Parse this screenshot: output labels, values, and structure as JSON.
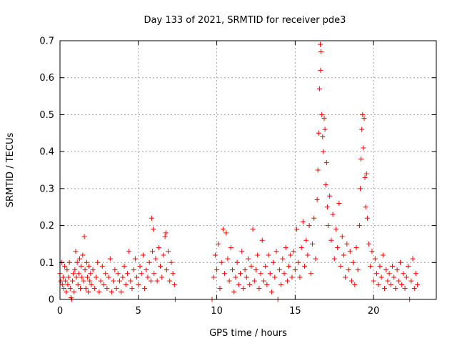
{
  "chart_data": {
    "type": "scatter",
    "title": "Day 133 of 2021, SRMTID for receiver pde3",
    "xlabel": "GPS time / hours",
    "ylabel": "SRMTID / TECUs",
    "xlim": [
      0,
      24
    ],
    "ylim": [
      0,
      0.7
    ],
    "xticks": [
      0,
      5,
      10,
      15,
      20
    ],
    "xtick_labels": [
      "0",
      "5",
      "10",
      "15",
      "20"
    ],
    "yticks": [
      0,
      0.1,
      0.2,
      0.3,
      0.4,
      0.5,
      0.6,
      0.7
    ],
    "ytick_labels": [
      "0",
      "0.1",
      "0.2",
      "0.3",
      "0.4",
      "0.5",
      "0.6",
      "0.7"
    ],
    "grid": true,
    "marker": "+",
    "series": [
      {
        "name": "SRMTID",
        "color": "#ff0000",
        "points": [
          [
            0.0,
            0.07
          ],
          [
            0.05,
            0.05
          ],
          [
            0.1,
            0.1
          ],
          [
            0.15,
            0.04
          ],
          [
            0.2,
            0.06
          ],
          [
            0.25,
            0.03
          ],
          [
            0.3,
            0.09
          ],
          [
            0.35,
            0.05
          ],
          [
            0.4,
            0.02
          ],
          [
            0.45,
            0.08
          ],
          [
            0.5,
            0.04
          ],
          [
            0.55,
            0.06
          ],
          [
            0.6,
            0.1
          ],
          [
            0.65,
            0.03
          ],
          [
            0.7,
            0.005
          ],
          [
            0.75,
            0.0
          ],
          [
            0.8,
            0.05
          ],
          [
            0.85,
            0.07
          ],
          [
            0.9,
            0.02
          ],
          [
            0.95,
            0.08
          ],
          [
            1.0,
            0.13
          ],
          [
            1.05,
            0.06
          ],
          [
            1.1,
            0.1
          ],
          [
            1.15,
            0.04
          ],
          [
            1.2,
            0.07
          ],
          [
            1.25,
            0.11
          ],
          [
            1.3,
            0.03
          ],
          [
            1.35,
            0.09
          ],
          [
            1.4,
            0.06
          ],
          [
            1.45,
            0.12
          ],
          [
            1.5,
            0.05
          ],
          [
            1.55,
            0.17
          ],
          [
            1.6,
            0.08
          ],
          [
            1.65,
            0.03
          ],
          [
            1.7,
            0.1
          ],
          [
            1.75,
            0.06
          ],
          [
            1.8,
            0.02
          ],
          [
            1.85,
            0.09
          ],
          [
            1.9,
            0.05
          ],
          [
            1.95,
            0.07
          ],
          [
            2.0,
            0.04
          ],
          [
            2.1,
            0.08
          ],
          [
            2.2,
            0.03
          ],
          [
            2.3,
            0.06
          ],
          [
            2.4,
            0.1
          ],
          [
            2.5,
            0.02
          ],
          [
            2.6,
            0.05
          ],
          [
            2.7,
            0.09
          ],
          [
            2.8,
            0.04
          ],
          [
            2.9,
            0.07
          ],
          [
            3.0,
            0.03
          ],
          [
            3.1,
            0.06
          ],
          [
            3.2,
            0.11
          ],
          [
            3.3,
            0.02
          ],
          [
            3.4,
            0.05
          ],
          [
            3.5,
            0.08
          ],
          [
            3.6,
            0.03
          ],
          [
            3.7,
            0.07
          ],
          [
            3.8,
            0.05
          ],
          [
            3.9,
            0.02
          ],
          [
            4.0,
            0.06
          ],
          [
            4.1,
            0.09
          ],
          [
            4.2,
            0.04
          ],
          [
            4.3,
            0.07
          ],
          [
            4.4,
            0.13
          ],
          [
            4.5,
            0.05
          ],
          [
            4.6,
            0.03
          ],
          [
            4.7,
            0.08
          ],
          [
            4.8,
            0.11
          ],
          [
            4.9,
            0.06
          ],
          [
            5.0,
            0.04
          ],
          [
            5.1,
            0.09
          ],
          [
            5.2,
            0.07
          ],
          [
            5.3,
            0.12
          ],
          [
            5.4,
            0.03
          ],
          [
            5.5,
            0.08
          ],
          [
            5.6,
            0.06
          ],
          [
            5.7,
            0.1
          ],
          [
            5.8,
            0.05
          ],
          [
            5.85,
            0.22
          ],
          [
            5.9,
            0.13
          ],
          [
            5.95,
            0.19
          ],
          [
            6.0,
            0.07
          ],
          [
            6.1,
            0.11
          ],
          [
            6.2,
            0.05
          ],
          [
            6.3,
            0.14
          ],
          [
            6.4,
            0.09
          ],
          [
            6.5,
            0.06
          ],
          [
            6.6,
            0.12
          ],
          [
            6.7,
            0.17
          ],
          [
            6.75,
            0.18
          ],
          [
            6.8,
            0.08
          ],
          [
            6.9,
            0.13
          ],
          [
            7.0,
            0.05
          ],
          [
            7.1,
            0.1
          ],
          [
            7.2,
            0.07
          ],
          [
            7.3,
            0.04
          ],
          [
            7.35,
            0.0
          ],
          [
            9.7,
            0.0
          ],
          [
            9.8,
            0.06
          ],
          [
            9.9,
            0.12
          ],
          [
            10.0,
            0.08
          ],
          [
            10.1,
            0.15
          ],
          [
            10.2,
            0.03
          ],
          [
            10.3,
            0.1
          ],
          [
            10.4,
            0.19
          ],
          [
            10.5,
            0.07
          ],
          [
            10.6,
            0.18
          ],
          [
            10.7,
            0.11
          ],
          [
            10.8,
            0.05
          ],
          [
            10.9,
            0.14
          ],
          [
            11.0,
            0.08
          ],
          [
            11.1,
            0.02
          ],
          [
            11.2,
            0.06
          ],
          [
            11.3,
            0.1
          ],
          [
            11.4,
            0.04
          ],
          [
            11.5,
            0.07
          ],
          [
            11.6,
            0.13
          ],
          [
            11.7,
            0.03
          ],
          [
            11.8,
            0.08
          ],
          [
            11.9,
            0.06
          ],
          [
            12.0,
            0.11
          ],
          [
            12.1,
            0.04
          ],
          [
            12.2,
            0.09
          ],
          [
            12.3,
            0.19
          ],
          [
            12.4,
            0.05
          ],
          [
            12.5,
            0.08
          ],
          [
            12.6,
            0.12
          ],
          [
            12.7,
            0.03
          ],
          [
            12.8,
            0.07
          ],
          [
            12.9,
            0.16
          ],
          [
            13.0,
            0.05
          ],
          [
            13.1,
            0.09
          ],
          [
            13.2,
            0.04
          ],
          [
            13.3,
            0.12
          ],
          [
            13.4,
            0.07
          ],
          [
            13.5,
            0.02
          ],
          [
            13.6,
            0.1
          ],
          [
            13.7,
            0.06
          ],
          [
            13.8,
            0.13
          ],
          [
            13.9,
            0.0
          ],
          [
            14.0,
            0.08
          ],
          [
            14.1,
            0.04
          ],
          [
            14.2,
            0.11
          ],
          [
            14.3,
            0.07
          ],
          [
            14.4,
            0.14
          ],
          [
            14.5,
            0.05
          ],
          [
            14.6,
            0.09
          ],
          [
            14.7,
            0.12
          ],
          [
            14.8,
            0.06
          ],
          [
            14.9,
            0.13
          ],
          [
            15.0,
            0.08
          ],
          [
            15.1,
            0.19
          ],
          [
            15.2,
            0.1
          ],
          [
            15.3,
            0.06
          ],
          [
            15.4,
            0.14
          ],
          [
            15.5,
            0.21
          ],
          [
            15.6,
            0.09
          ],
          [
            15.7,
            0.16
          ],
          [
            15.8,
            0.12
          ],
          [
            15.9,
            0.2
          ],
          [
            16.0,
            0.07
          ],
          [
            16.1,
            0.15
          ],
          [
            16.2,
            0.22
          ],
          [
            16.3,
            0.11
          ],
          [
            16.4,
            0.27
          ],
          [
            16.45,
            0.35
          ],
          [
            16.5,
            0.45
          ],
          [
            16.55,
            0.57
          ],
          [
            16.6,
            0.69
          ],
          [
            16.62,
            0.62
          ],
          [
            16.65,
            0.67
          ],
          [
            16.7,
            0.5
          ],
          [
            16.75,
            0.44
          ],
          [
            16.8,
            0.4
          ],
          [
            16.85,
            0.49
          ],
          [
            16.9,
            0.46
          ],
          [
            16.95,
            0.31
          ],
          [
            17.0,
            0.37
          ],
          [
            17.05,
            0.25
          ],
          [
            17.1,
            0.2
          ],
          [
            17.2,
            0.28
          ],
          [
            17.3,
            0.16
          ],
          [
            17.4,
            0.23
          ],
          [
            17.5,
            0.11
          ],
          [
            17.6,
            0.19
          ],
          [
            17.7,
            0.14
          ],
          [
            17.8,
            0.26
          ],
          [
            17.9,
            0.09
          ],
          [
            18.0,
            0.17
          ],
          [
            18.1,
            0.12
          ],
          [
            18.2,
            0.06
          ],
          [
            18.3,
            0.15
          ],
          [
            18.4,
            0.08
          ],
          [
            18.5,
            0.13
          ],
          [
            18.6,
            0.05
          ],
          [
            18.7,
            0.1
          ],
          [
            18.8,
            0.04
          ],
          [
            18.9,
            0.14
          ],
          [
            19.0,
            0.08
          ],
          [
            19.1,
            0.2
          ],
          [
            19.15,
            0.3
          ],
          [
            19.2,
            0.38
          ],
          [
            19.25,
            0.46
          ],
          [
            19.3,
            0.5
          ],
          [
            19.35,
            0.41
          ],
          [
            19.4,
            0.49
          ],
          [
            19.45,
            0.33
          ],
          [
            19.5,
            0.25
          ],
          [
            19.55,
            0.34
          ],
          [
            19.6,
            0.22
          ],
          [
            19.7,
            0.15
          ],
          [
            19.8,
            0.09
          ],
          [
            19.9,
            0.13
          ],
          [
            20.0,
            0.05
          ],
          [
            20.1,
            0.11
          ],
          [
            20.2,
            0.07
          ],
          [
            20.3,
            0.04
          ],
          [
            20.4,
            0.09
          ],
          [
            20.5,
            0.06
          ],
          [
            20.6,
            0.12
          ],
          [
            20.7,
            0.03
          ],
          [
            20.8,
            0.08
          ],
          [
            20.9,
            0.05
          ],
          [
            21.0,
            0.07
          ],
          [
            21.1,
            0.04
          ],
          [
            21.2,
            0.09
          ],
          [
            21.3,
            0.06
          ],
          [
            21.4,
            0.03
          ],
          [
            21.5,
            0.08
          ],
          [
            21.6,
            0.05
          ],
          [
            21.7,
            0.1
          ],
          [
            21.8,
            0.04
          ],
          [
            21.9,
            0.07
          ],
          [
            22.0,
            0.03
          ],
          [
            22.1,
            0.06
          ],
          [
            22.2,
            0.09
          ],
          [
            22.3,
            0.0
          ],
          [
            22.4,
            0.05
          ],
          [
            22.5,
            0.11
          ],
          [
            22.6,
            0.03
          ],
          [
            22.7,
            0.07
          ],
          [
            22.8,
            0.04
          ]
        ]
      }
    ]
  }
}
